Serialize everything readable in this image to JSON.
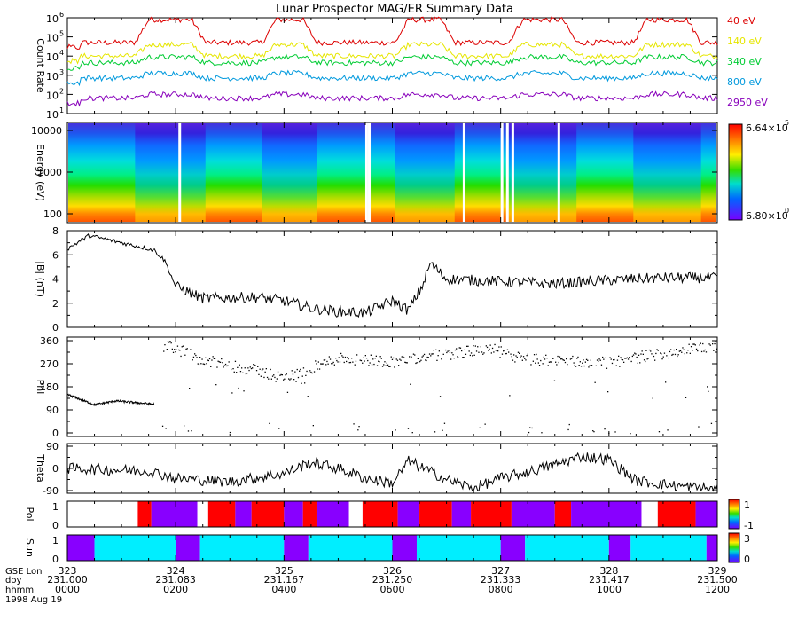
{
  "title": "Lunar Prospector MAG/ER Summary Data",
  "chart_data": [
    {
      "type": "line",
      "panel": "count-rate",
      "ylabel": "Count Rate",
      "yscale": "log",
      "ylim": [
        10,
        1000000
      ],
      "ytick_labels": [
        "10",
        "10",
        "10",
        "10",
        "10",
        "10"
      ],
      "ytick_exponents": [
        "1",
        "2",
        "3",
        "4",
        "5",
        "6"
      ],
      "series": [
        {
          "name": "40 eV",
          "color": "#dd0000"
        },
        {
          "name": "140 eV",
          "color": "#e6e600"
        },
        {
          "name": "340 eV",
          "color": "#00cc33"
        },
        {
          "name": "800 eV",
          "color": "#0099dd"
        },
        {
          "name": "2950 eV",
          "color": "#8800bb"
        }
      ]
    },
    {
      "type": "heatmap",
      "panel": "spectrogram",
      "ylabel": "Energy (eV)",
      "yscale": "log",
      "ytick_labels": [
        "10000",
        "1000",
        "100"
      ],
      "colorbar_max_mantissa": "6.64×10",
      "colorbar_max_exp": "5",
      "colorbar_min_mantissa": "6.80×10",
      "colorbar_min_exp": "0"
    },
    {
      "type": "line",
      "panel": "b-magnitude",
      "ylabel": "|B| (nT)",
      "ylim": [
        0,
        8
      ],
      "ytick_labels": [
        "0",
        "2",
        "4",
        "6",
        "8"
      ]
    },
    {
      "type": "scatter",
      "panel": "phi",
      "ylabel": "Phi",
      "ylim": [
        0,
        360
      ],
      "ytick_labels": [
        "0",
        "90",
        "180",
        "270",
        "360"
      ]
    },
    {
      "type": "line",
      "panel": "theta",
      "ylabel": "Theta",
      "ylim": [
        -90,
        90
      ],
      "ytick_labels": [
        "-90",
        "0",
        "90"
      ]
    },
    {
      "type": "heatmap",
      "panel": "polarity",
      "ylabel": "Pol",
      "ytick_labels": [
        "0",
        "1"
      ],
      "colorbar_labels": [
        "1",
        "-1"
      ],
      "intervals_hours": [
        [
          0,
          1.3,
          "w"
        ],
        [
          1.3,
          1.55,
          "r"
        ],
        [
          1.55,
          2.4,
          "p"
        ],
        [
          2.4,
          2.6,
          "w"
        ],
        [
          2.6,
          3.1,
          "r"
        ],
        [
          3.1,
          3.4,
          "p"
        ],
        [
          3.4,
          4.0,
          "r"
        ],
        [
          4.0,
          4.35,
          "p"
        ],
        [
          4.35,
          4.6,
          "r"
        ],
        [
          4.6,
          5.2,
          "p"
        ],
        [
          5.2,
          5.45,
          "w"
        ],
        [
          5.45,
          6.1,
          "r"
        ],
        [
          6.1,
          6.5,
          "p"
        ],
        [
          6.5,
          7.1,
          "r"
        ],
        [
          7.1,
          7.45,
          "p"
        ],
        [
          7.45,
          8.2,
          "r"
        ],
        [
          8.2,
          9.0,
          "p"
        ],
        [
          9.0,
          9.3,
          "r"
        ],
        [
          9.3,
          10.6,
          "p"
        ],
        [
          10.6,
          10.9,
          "w"
        ],
        [
          10.9,
          11.6,
          "r"
        ],
        [
          11.6,
          12.0,
          "p"
        ]
      ]
    },
    {
      "type": "heatmap",
      "panel": "sun",
      "ylabel": "Sun",
      "ytick_labels": [
        "0",
        "1"
      ],
      "colorbar_labels": [
        "3",
        "0"
      ],
      "intervals_hours": [
        [
          0,
          0.5,
          "p"
        ],
        [
          0.5,
          2.0,
          "c"
        ],
        [
          2.0,
          2.45,
          "p"
        ],
        [
          2.45,
          4.0,
          "c"
        ],
        [
          4.0,
          4.45,
          "p"
        ],
        [
          4.45,
          6.0,
          "c"
        ],
        [
          6.0,
          6.45,
          "p"
        ],
        [
          6.45,
          8.0,
          "c"
        ],
        [
          8.0,
          8.45,
          "p"
        ],
        [
          8.45,
          10.0,
          "c"
        ],
        [
          10.0,
          10.4,
          "p"
        ],
        [
          10.4,
          11.8,
          "c"
        ],
        [
          11.8,
          12.0,
          "p"
        ]
      ]
    }
  ],
  "xaxis": {
    "row_labels": [
      "GSE Lon",
      "doy",
      "hhmm"
    ],
    "date": "1998 Aug 19",
    "hours": [
      0,
      2,
      4,
      6,
      8,
      10,
      12
    ],
    "lon": [
      "323",
      "324",
      "325",
      "326",
      "327",
      "328",
      "329"
    ],
    "doy": [
      "231.000",
      "231.083",
      "231.167",
      "231.250",
      "231.333",
      "231.417",
      "231.500"
    ],
    "hhmm": [
      "0000",
      "0200",
      "0400",
      "0600",
      "0800",
      "1000",
      "1200"
    ]
  }
}
